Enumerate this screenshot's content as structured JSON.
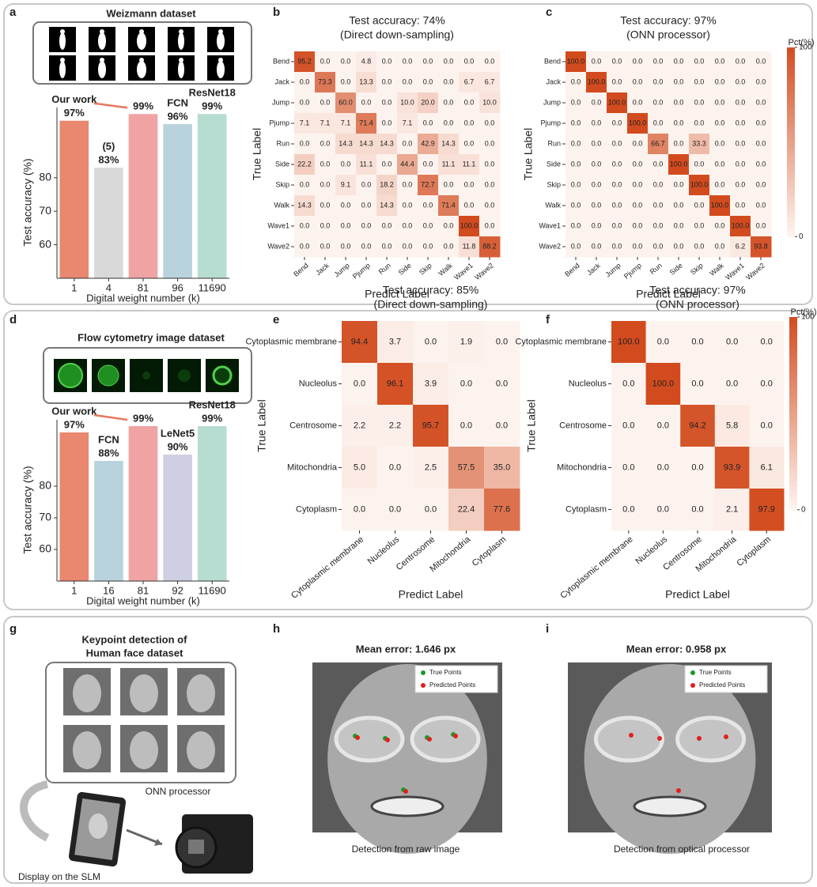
{
  "panel_labels": [
    "a",
    "b",
    "c",
    "d",
    "e",
    "f",
    "g",
    "h",
    "i"
  ],
  "chart_data": [
    {
      "type": "bar",
      "title": "Weizmann dataset",
      "categories": [
        "1",
        "4",
        "81",
        "96",
        "11690"
      ],
      "values": [
        97,
        83,
        99,
        96,
        99
      ],
      "value_labels": [
        "97%",
        "83%",
        "99%",
        "96%",
        "99%"
      ],
      "colors": [
        "#e9876f",
        "#d9d9d9",
        "#f0a3a3",
        "#b9d3dc",
        "#b7dcd2"
      ],
      "models": [
        "Our work",
        "(5)",
        null,
        "FCN",
        "ResNet18"
      ],
      "label_colors": [
        "#e8765e",
        "#8c8c8c",
        "#ea8e8e",
        "#6fa6c6",
        "#7cc2b4"
      ],
      "ylim": [
        50,
        100
      ],
      "yticks": [
        60,
        70,
        80
      ],
      "xlabel": "Digital weight number (k)",
      "ylabel": "Test accuracy (%)"
    },
    {
      "type": "heatmap",
      "title": [
        "Test accuracy: 74%",
        "(Direct down-sampling)"
      ],
      "categories": [
        "Bend",
        "Jack",
        "Jump",
        "Pjump",
        "Run",
        "Side",
        "Skip",
        "Walk",
        "Wave1",
        "Wave2"
      ],
      "values": [
        [
          95.2,
          0,
          0,
          4.8,
          0,
          0,
          0,
          0,
          0,
          0
        ],
        [
          0,
          73.3,
          0,
          13.3,
          0,
          0,
          0,
          0,
          6.7,
          6.7
        ],
        [
          0,
          0,
          60,
          0,
          0,
          10,
          20,
          0,
          0,
          10
        ],
        [
          7.1,
          7.1,
          7.1,
          71.4,
          0,
          7.1,
          0,
          0,
          0,
          0
        ],
        [
          0,
          0,
          14.3,
          14.3,
          14.3,
          0,
          42.9,
          14.3,
          0,
          0
        ],
        [
          22.2,
          0,
          0,
          11.1,
          0,
          44.4,
          0,
          11.1,
          11.1,
          0
        ],
        [
          0,
          0,
          9.1,
          0,
          18.2,
          0,
          72.7,
          0,
          0,
          0
        ],
        [
          14.3,
          0,
          0,
          0,
          14.3,
          0,
          0,
          71.4,
          0,
          0
        ],
        [
          0,
          0,
          0,
          0,
          0,
          0,
          0,
          0,
          100,
          0
        ],
        [
          0,
          0,
          0,
          0,
          0,
          0,
          0,
          0,
          11.8,
          88.2
        ]
      ],
      "value_labels": [
        [
          "95.2",
          "0.0",
          "0.0",
          "4.8",
          "0.0",
          "0.0",
          "0.0",
          "0.0",
          "0.0",
          "0.0"
        ],
        [
          "0.0",
          "73.3",
          "0.0",
          "13.3",
          "0.0",
          "0.0",
          "0.0",
          "0.0",
          "6.7",
          "6.7"
        ],
        [
          "0.0",
          "0.0",
          "60.0",
          "0.0",
          "0.0",
          "10.0",
          "20.0",
          "0.0",
          "0.0",
          "10.0"
        ],
        [
          "7.1",
          "7.1",
          "7.1",
          "71.4",
          "0.0",
          "7.1",
          "0.0",
          "0.0",
          "0.0",
          "0.0"
        ],
        [
          "0.0",
          "0.0",
          "14.3",
          "14.3",
          "14.3",
          "0.0",
          "42.9",
          "14.3",
          "0.0",
          "0.0"
        ],
        [
          "22.2",
          "0.0",
          "0.0",
          "11.1",
          "0.0",
          "44.4",
          "0.0",
          "11.1",
          "11.1",
          "0.0"
        ],
        [
          "0.0",
          "0.0",
          "9.1",
          "0.0",
          "18.2",
          "0.0",
          "72.7",
          "0.0",
          "0.0",
          "0.0"
        ],
        [
          "14.3",
          "0.0",
          "0.0",
          "0.0",
          "14.3",
          "0.0",
          "0.0",
          "71.4",
          "0.0",
          "0.0"
        ],
        [
          "0.0",
          "0.0",
          "0.0",
          "0.0",
          "0.0",
          "0.0",
          "0.0",
          "0.0",
          "100.0",
          "0.0"
        ],
        [
          "0.0",
          "0.0",
          "0.0",
          "0.0",
          "0.0",
          "0.0",
          "0.0",
          "0.0",
          "11.8",
          "88.2"
        ]
      ],
      "clim": [
        0,
        100
      ],
      "colormap": [
        "#fdf3ee",
        "#d24b1e"
      ],
      "xlabel": "Predict Label",
      "ylabel": "True Label"
    },
    {
      "type": "heatmap",
      "title": [
        "Test accuracy: 97%",
        "(ONN processor)"
      ],
      "categories": [
        "Bend",
        "Jack",
        "Jump",
        "Pjump",
        "Run",
        "Side",
        "Skip",
        "Walk",
        "Wave1",
        "Wave2"
      ],
      "values": [
        [
          100,
          0,
          0,
          0,
          0,
          0,
          0,
          0,
          0,
          0
        ],
        [
          0,
          100,
          0,
          0,
          0,
          0,
          0,
          0,
          0,
          0
        ],
        [
          0,
          0,
          100,
          0,
          0,
          0,
          0,
          0,
          0,
          0
        ],
        [
          0,
          0,
          0,
          100,
          0,
          0,
          0,
          0,
          0,
          0
        ],
        [
          0,
          0,
          0,
          0,
          66.7,
          0,
          33.3,
          0,
          0,
          0
        ],
        [
          0,
          0,
          0,
          0,
          0,
          100,
          0,
          0,
          0,
          0
        ],
        [
          0,
          0,
          0,
          0,
          0,
          0,
          100,
          0,
          0,
          0
        ],
        [
          0,
          0,
          0,
          0,
          0,
          0,
          0,
          100,
          0,
          0
        ],
        [
          0,
          0,
          0,
          0,
          0,
          0,
          0,
          0,
          100,
          0
        ],
        [
          0,
          0,
          0,
          0,
          0,
          0,
          0,
          0,
          6.2,
          93.8
        ]
      ],
      "value_labels": [
        [
          "100.0",
          "0.0",
          "0.0",
          "0.0",
          "0.0",
          "0.0",
          "0.0",
          "0.0",
          "0.0",
          "0.0"
        ],
        [
          "0.0",
          "100.0",
          "0.0",
          "0.0",
          "0.0",
          "0.0",
          "0.0",
          "0.0",
          "0.0",
          "0.0"
        ],
        [
          "0.0",
          "0.0",
          "100.0",
          "0.0",
          "0.0",
          "0.0",
          "0.0",
          "0.0",
          "0.0",
          "0.0"
        ],
        [
          "0.0",
          "0.0",
          "0.0",
          "100.0",
          "0.0",
          "0.0",
          "0.0",
          "0.0",
          "0.0",
          "0.0"
        ],
        [
          "0.0",
          "0.0",
          "0.0",
          "0.0",
          "66.7",
          "0.0",
          "33.3",
          "0.0",
          "0.0",
          "0.0"
        ],
        [
          "0.0",
          "0.0",
          "0.0",
          "0.0",
          "0.0",
          "100.0",
          "0.0",
          "0.0",
          "0.0",
          "0.0"
        ],
        [
          "0.0",
          "0.0",
          "0.0",
          "0.0",
          "0.0",
          "0.0",
          "100.0",
          "0.0",
          "0.0",
          "0.0"
        ],
        [
          "0.0",
          "0.0",
          "0.0",
          "0.0",
          "0.0",
          "0.0",
          "0.0",
          "100.0",
          "0.0",
          "0.0"
        ],
        [
          "0.0",
          "0.0",
          "0.0",
          "0.0",
          "0.0",
          "0.0",
          "0.0",
          "0.0",
          "100.0",
          "0.0"
        ],
        [
          "0.0",
          "0.0",
          "0.0",
          "0.0",
          "0.0",
          "0.0",
          "0.0",
          "0.0",
          "6.2",
          "93.8"
        ]
      ],
      "clim": [
        0,
        100
      ],
      "colormap": [
        "#fdf3ee",
        "#d24b1e"
      ],
      "colorbar": {
        "label": "Pct(%)",
        "ticks": [
          100,
          0
        ]
      },
      "xlabel": "Predict Label",
      "ylabel": "True Label"
    },
    {
      "type": "bar",
      "title": "Flow cytometry image dataset",
      "categories": [
        "1",
        "16",
        "81",
        "92",
        "11690"
      ],
      "values": [
        97,
        88,
        99,
        90,
        99
      ],
      "value_labels": [
        "97%",
        "88%",
        "99%",
        "90%",
        "99%"
      ],
      "colors": [
        "#e9876f",
        "#b9d3dc",
        "#f0a3a3",
        "#cfcfe3",
        "#b7dcd2"
      ],
      "models": [
        "Our work",
        "FCN",
        null,
        "LeNet5",
        "ResNet18"
      ],
      "label_colors": [
        "#e8765e",
        "#6fa6c6",
        "#ea8e8e",
        "#a9a9d6",
        "#7cc2b4"
      ],
      "ylim": [
        50,
        100
      ],
      "yticks": [
        60,
        70,
        80
      ],
      "xlabel": "Digital weight number (k)",
      "ylabel": "Test accuracy (%)"
    },
    {
      "type": "heatmap",
      "title": [
        "Test accuracy: 85%",
        "(Direct down-sampling)"
      ],
      "categories": [
        "Cytoplasmic membrane",
        "Nucleolus",
        "Centrosome",
        "Mitochondria",
        "Cytoplasm"
      ],
      "values": [
        [
          94.4,
          3.7,
          0,
          1.9,
          0
        ],
        [
          0,
          96.1,
          3.9,
          0,
          0
        ],
        [
          2.2,
          2.2,
          95.7,
          0,
          0
        ],
        [
          5,
          0,
          2.5,
          57.5,
          35
        ],
        [
          0,
          0,
          0,
          22.4,
          77.6
        ]
      ],
      "value_labels": [
        [
          "94.4",
          "3.7",
          "0.0",
          "1.9",
          "0.0"
        ],
        [
          "0.0",
          "96.1",
          "3.9",
          "0.0",
          "0.0"
        ],
        [
          "2.2",
          "2.2",
          "95.7",
          "0.0",
          "0.0"
        ],
        [
          "5.0",
          "0.0",
          "2.5",
          "57.5",
          "35.0"
        ],
        [
          "0.0",
          "0.0",
          "0.0",
          "22.4",
          "77.6"
        ]
      ],
      "clim": [
        0,
        100
      ],
      "colormap": [
        "#fdf3ee",
        "#d24b1e"
      ],
      "xlabel": "Predict Label",
      "ylabel": "True Label"
    },
    {
      "type": "heatmap",
      "title": [
        "Test accuracy: 97%",
        "(ONN processor)"
      ],
      "categories": [
        "Cytoplasmic membrane",
        "Nucleolus",
        "Centrosome",
        "Mitochondria",
        "Cytoplasm"
      ],
      "values": [
        [
          100,
          0,
          0,
          0,
          0
        ],
        [
          0,
          100,
          0,
          0,
          0
        ],
        [
          0,
          0,
          94.2,
          5.8,
          0
        ],
        [
          0,
          0,
          0,
          93.9,
          6.1
        ],
        [
          0,
          0,
          0,
          2.1,
          97.9
        ]
      ],
      "value_labels": [
        [
          "100.0",
          "0.0",
          "0.0",
          "0.0",
          "0.0"
        ],
        [
          "0.0",
          "100.0",
          "0.0",
          "0.0",
          "0.0"
        ],
        [
          "0.0",
          "0.0",
          "94.2",
          "5.8",
          "0.0"
        ],
        [
          "0.0",
          "0.0",
          "0.0",
          "93.9",
          "6.1"
        ],
        [
          "0.0",
          "0.0",
          "0.0",
          "2.1",
          "97.9"
        ]
      ],
      "clim": [
        0,
        100
      ],
      "colormap": [
        "#fdf3ee",
        "#d24b1e"
      ],
      "colorbar": {
        "label": "Pct(%)",
        "ticks": [
          100,
          0
        ]
      },
      "xlabel": "Predict Label",
      "ylabel": "True Label"
    }
  ],
  "panel_g": {
    "title": [
      "Keypoint detection  of",
      "Human face dataset"
    ],
    "processor": "ONN processor",
    "display": "Display on the SLM"
  },
  "panel_h": {
    "title": "Mean error: 1.646 px",
    "legend": [
      "True Points",
      "Predicted Points"
    ],
    "caption": "Detection from raw image"
  },
  "panel_i": {
    "title": "Mean error: 0.958 px",
    "legend": [
      "True Points",
      "Predicted Points"
    ],
    "caption": "Detection from optical processor"
  }
}
